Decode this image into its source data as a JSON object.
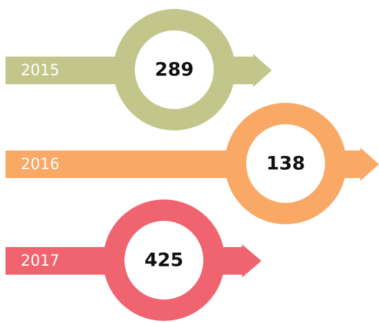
{
  "items": [
    {
      "year": "2015",
      "value": "289",
      "color": "#c2c68a"
    },
    {
      "year": "2016",
      "value": "138",
      "color": "#f9a866"
    },
    {
      "year": "2017",
      "value": "425",
      "color": "#f0646f"
    }
  ]
}
